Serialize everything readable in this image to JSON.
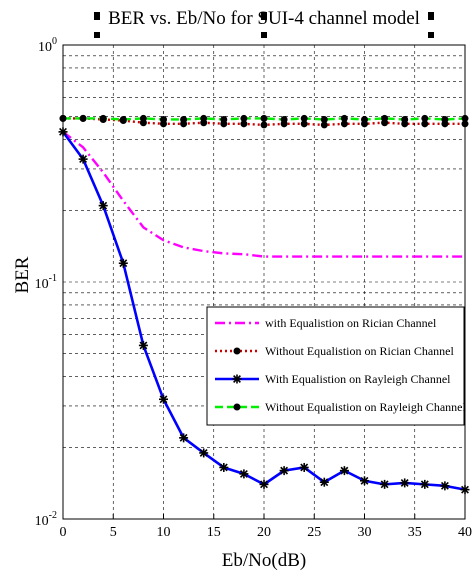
{
  "chart_data": {
    "type": "line",
    "title": "BER vs. Eb/No for SUI-4 channel model",
    "xlabel": "Eb/No(dB)",
    "ylabel": "BER",
    "x_ticks": [
      0,
      5,
      10,
      15,
      20,
      25,
      30,
      35,
      40
    ],
    "xlim": [
      0,
      40
    ],
    "ylim": [
      0.01,
      1
    ],
    "y_scale": "log",
    "y_tick_labels": [
      {
        "base": "10",
        "exp": "0",
        "value": 1
      },
      {
        "base": "10",
        "exp": "-1",
        "value": 0.1
      },
      {
        "base": "10",
        "exp": "-2",
        "value": 0.01
      }
    ],
    "grid": true,
    "legend_position": "lower-right",
    "series": [
      {
        "name": "with Equalistion on Rician Channel",
        "color": "#ff00ff",
        "style": "dashdot",
        "marker": "none",
        "x": [
          0,
          2,
          4,
          6,
          8,
          10,
          12,
          14,
          16,
          18,
          20,
          22,
          24,
          26,
          28,
          30,
          32,
          34,
          36,
          38,
          40
        ],
        "y": [
          0.43,
          0.37,
          0.29,
          0.22,
          0.17,
          0.15,
          0.14,
          0.135,
          0.132,
          0.131,
          0.128,
          0.128,
          0.128,
          0.128,
          0.128,
          0.128,
          0.128,
          0.128,
          0.128,
          0.128,
          0.128
        ]
      },
      {
        "name": "Without Equalistion on Rician Channel",
        "color": "#cc0000",
        "style": "dotted",
        "marker": "dot",
        "x": [
          0,
          2,
          4,
          6,
          8,
          10,
          12,
          14,
          16,
          18,
          20,
          22,
          24,
          26,
          28,
          30,
          32,
          34,
          36,
          38,
          40
        ],
        "y": [
          0.49,
          0.49,
          0.485,
          0.48,
          0.47,
          0.465,
          0.465,
          0.47,
          0.465,
          0.465,
          0.46,
          0.465,
          0.465,
          0.46,
          0.465,
          0.465,
          0.47,
          0.465,
          0.465,
          0.465,
          0.465
        ]
      },
      {
        "name": "With Equalistion on Rayleigh Channel",
        "color": "#0000ff",
        "style": "solid",
        "marker": "star",
        "x": [
          0,
          2,
          4,
          6,
          8,
          10,
          12,
          14,
          16,
          18,
          20,
          22,
          24,
          26,
          28,
          30,
          32,
          34,
          36,
          38,
          40
        ],
        "y": [
          0.43,
          0.33,
          0.21,
          0.12,
          0.054,
          0.032,
          0.022,
          0.019,
          0.0165,
          0.0155,
          0.014,
          0.016,
          0.0165,
          0.0143,
          0.016,
          0.0145,
          0.014,
          0.0142,
          0.014,
          0.0138,
          0.0133
        ]
      },
      {
        "name": "Without Equalistion on Rayleigh Channel",
        "color": "#00ee00",
        "style": "dashed",
        "marker": "dot",
        "x": [
          0,
          2,
          4,
          6,
          8,
          10,
          12,
          14,
          16,
          18,
          20,
          22,
          24,
          26,
          28,
          30,
          32,
          34,
          36,
          38,
          40
        ],
        "y": [
          0.49,
          0.49,
          0.49,
          0.485,
          0.49,
          0.485,
          0.485,
          0.49,
          0.485,
          0.49,
          0.49,
          0.485,
          0.49,
          0.485,
          0.49,
          0.485,
          0.49,
          0.485,
          0.49,
          0.485,
          0.49
        ]
      }
    ]
  }
}
